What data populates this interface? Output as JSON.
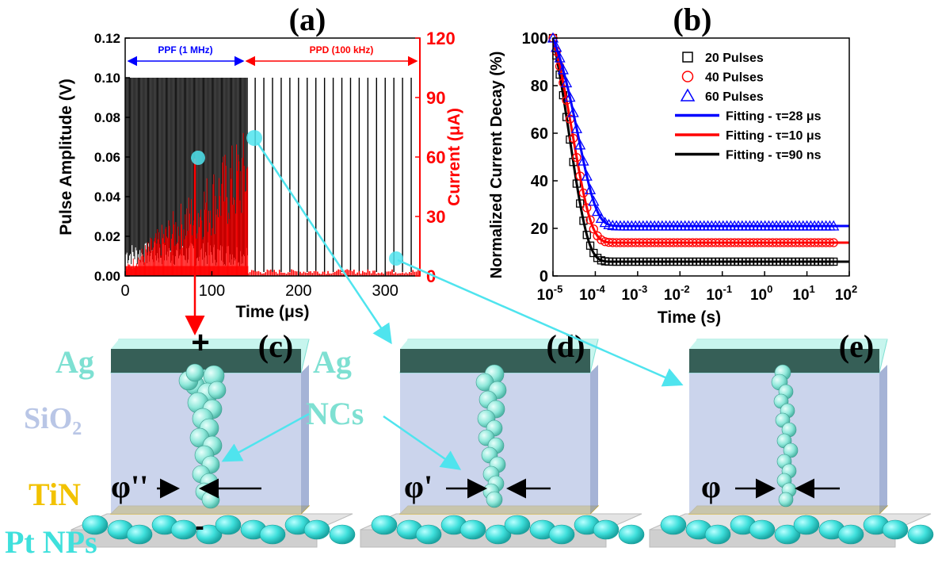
{
  "panels": {
    "a": "(a)",
    "b": "(b)",
    "c": "(c)",
    "d": "(d)",
    "e": "(e)"
  },
  "colors": {
    "left_axis": "#000000",
    "current": "#ff0000",
    "ppf_arrow": "#0000ff",
    "ppd_arrow": "#ff0000",
    "fit_20": "#000000",
    "fit_40": "#ff0000",
    "fit_60": "#0000ff",
    "ag": "#7ee0d2",
    "sio2": "#b9c6e6",
    "tin": "#f2c200",
    "pt_nps": "#3fe0dc",
    "pointer": "#4fe4ee"
  },
  "chart_data": [
    {
      "panel": "a",
      "type": "line",
      "xlabel": "Time (μs)",
      "ylabel": "Pulse Amplitude (V)",
      "ylabel_right": "Current (μA)",
      "xlim": [
        0,
        340
      ],
      "ylim": [
        0,
        0.12
      ],
      "ylim_right": [
        0,
        120
      ],
      "x_ticks": [
        0,
        100,
        200,
        300
      ],
      "x_tick_labels": [
        "0",
        "100",
        "200",
        "300"
      ],
      "y_ticks": [
        0.0,
        0.02,
        0.04,
        0.06,
        0.08,
        0.1,
        0.12
      ],
      "y_tick_labels": [
        "0.00",
        "0.02",
        "0.04",
        "0.06",
        "0.08",
        "0.10",
        "0.12"
      ],
      "y_ticks_right": [
        0,
        30,
        60,
        90,
        120
      ],
      "y_tick_labels_right": [
        "0",
        "30",
        "60",
        "90",
        "120"
      ],
      "annotations": [
        {
          "text": "PPF (1 MHz)",
          "x_range": [
            0,
            142
          ]
        },
        {
          "text": "PPD (100 kHz)",
          "x_range": [
            142,
            340
          ]
        }
      ],
      "series": [
        {
          "name": "Pulse Amplitude",
          "axis": "left",
          "ppf_level": 0.1,
          "ppf_range": [
            0,
            142
          ],
          "ppf_rate_MHz": 1,
          "ppd_level": 0.1,
          "ppd_range": [
            142,
            340
          ],
          "ppd_rate_kHz": 100
        },
        {
          "name": "Current",
          "axis": "right",
          "ppf_start": 5,
          "ppf_end": 77,
          "ppf_range": [
            0,
            142
          ],
          "ppd_level": 2,
          "ppd_range": [
            142,
            340
          ]
        }
      ]
    },
    {
      "panel": "b",
      "type": "scatter",
      "xlabel": "Time (s)",
      "ylabel": "Normalized Current Decay (%)",
      "xscale": "log",
      "xlim": [
        1e-05,
        100
      ],
      "ylim": [
        0,
        100
      ],
      "x_tick_mantissa": [
        "10",
        "10",
        "10",
        "10",
        "10",
        "10",
        "10",
        "10"
      ],
      "x_tick_exponents": [
        "-5",
        "-4",
        "-3",
        "-2",
        "-1",
        "0",
        "1",
        "2"
      ],
      "x_tick_values": [
        1e-05,
        0.0001,
        0.001,
        0.01,
        0.1,
        1,
        10,
        100
      ],
      "y_ticks": [
        0,
        20,
        40,
        60,
        80,
        100
      ],
      "y_tick_labels": [
        "0",
        "20",
        "40",
        "60",
        "80",
        "100"
      ],
      "legend_position": "top-right",
      "series": [
        {
          "name": "20 Pulses",
          "marker": "square",
          "color": "#000000",
          "tau_s": 9e-08,
          "plateau": 6,
          "scale_s": 2.5e-05
        },
        {
          "name": "40 Pulses",
          "marker": "circle",
          "color": "#ff0000",
          "tau_s": 1e-05,
          "plateau": 14,
          "scale_s": 3e-05
        },
        {
          "name": "60 Pulses",
          "marker": "triangle",
          "color": "#0000ff",
          "tau_s": 2.8e-05,
          "plateau": 21,
          "scale_s": 4e-05
        }
      ],
      "fits": [
        {
          "name": "Fitting - τ=28 μs",
          "color": "#0000ff"
        },
        {
          "name": "Fitting - τ=10 μs",
          "color": "#ff0000"
        },
        {
          "name": "Fitting - τ=90 ns",
          "color": "#000000"
        }
      ]
    }
  ],
  "device_labels": {
    "ag_top": "Ag",
    "sio2": "SiO",
    "sio2_sub": "2",
    "tin": "TiN",
    "pt_nps": "Pt NPs",
    "ag_ncs_1": "Ag",
    "ag_ncs_2": "NCs",
    "plus": "+",
    "minus": "-",
    "phi_c": "φ''",
    "phi_d": "φ'",
    "phi_e": "φ"
  }
}
